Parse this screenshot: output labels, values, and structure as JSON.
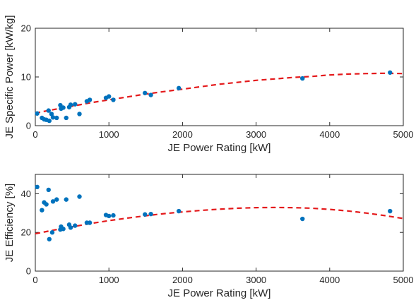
{
  "chart_data": [
    {
      "type": "scatter",
      "xlabel": "JE Power Rating [kW]",
      "ylabel": "JE Specific Power [kW/kg]",
      "xlim": [
        0,
        5000
      ],
      "ylim": [
        0,
        20
      ],
      "xticks": [
        "0",
        "1000",
        "2000",
        "3000",
        "4000",
        "5000"
      ],
      "yticks": [
        "0",
        "10",
        "20"
      ],
      "grid": false,
      "point_color": "#0072BD",
      "fit_color": "#E41A1C",
      "points": [
        [
          25,
          2.5
        ],
        [
          90,
          1.6
        ],
        [
          120,
          1.3
        ],
        [
          150,
          1.2
        ],
        [
          180,
          3.1
        ],
        [
          190,
          1.0
        ],
        [
          220,
          2.4
        ],
        [
          240,
          1.7
        ],
        [
          290,
          1.6
        ],
        [
          340,
          4.2
        ],
        [
          350,
          3.5
        ],
        [
          380,
          3.7
        ],
        [
          420,
          1.6
        ],
        [
          460,
          3.8
        ],
        [
          480,
          4.3
        ],
        [
          540,
          4.4
        ],
        [
          600,
          2.4
        ],
        [
          700,
          5.0
        ],
        [
          740,
          5.3
        ],
        [
          960,
          5.7
        ],
        [
          1000,
          6.0
        ],
        [
          1060,
          5.3
        ],
        [
          1490,
          6.7
        ],
        [
          1570,
          6.3
        ],
        [
          1950,
          7.7
        ],
        [
          3630,
          9.7
        ],
        [
          4820,
          10.9
        ]
      ],
      "fit": {
        "style": "dashed",
        "x": [
          0,
          250,
          500,
          750,
          1000,
          1250,
          1500,
          1750,
          2000,
          2250,
          2500,
          2750,
          3000,
          3250,
          3500,
          3750,
          4000,
          4250,
          4500,
          4750,
          5000
        ],
        "y": [
          2.6,
          3.3,
          4.0,
          4.7,
          5.3,
          5.9,
          6.5,
          7.0,
          7.5,
          8.0,
          8.5,
          8.9,
          9.3,
          9.6,
          9.9,
          10.1,
          10.4,
          10.6,
          10.7,
          10.75,
          10.7
        ]
      }
    },
    {
      "type": "scatter",
      "xlabel": "JE Power Rating [kW]",
      "ylabel": "JE Efficiency [%]",
      "xlim": [
        0,
        5000
      ],
      "ylim": [
        0,
        50
      ],
      "xticks": [
        "0",
        "1000",
        "2000",
        "3000",
        "4000",
        "5000"
      ],
      "yticks": [
        "0",
        "20",
        "40"
      ],
      "grid": false,
      "point_color": "#0072BD",
      "fit_color": "#E41A1C",
      "points": [
        [
          25,
          43.5
        ],
        [
          90,
          31.5
        ],
        [
          120,
          35.5
        ],
        [
          150,
          34.5
        ],
        [
          180,
          42.0
        ],
        [
          190,
          16.5
        ],
        [
          230,
          20.0
        ],
        [
          240,
          36.0
        ],
        [
          290,
          37.0
        ],
        [
          340,
          21.5
        ],
        [
          350,
          23.0
        ],
        [
          380,
          21.8
        ],
        [
          420,
          37.0
        ],
        [
          460,
          24.0
        ],
        [
          480,
          22.5
        ],
        [
          540,
          23.5
        ],
        [
          600,
          38.5
        ],
        [
          700,
          25.0
        ],
        [
          740,
          25.0
        ],
        [
          960,
          29.0
        ],
        [
          1000,
          28.5
        ],
        [
          1060,
          28.8
        ],
        [
          1490,
          29.3
        ],
        [
          1570,
          29.5
        ],
        [
          1950,
          31.0
        ],
        [
          3630,
          27.0
        ],
        [
          4820,
          31.0
        ]
      ],
      "fit": {
        "style": "dashed",
        "x": [
          0,
          250,
          500,
          750,
          1000,
          1250,
          1500,
          1750,
          2000,
          2250,
          2500,
          2750,
          3000,
          3250,
          3500,
          3750,
          4000,
          4250,
          4500,
          4750,
          5000
        ],
        "y": [
          19.3,
          21.2,
          22.9,
          24.6,
          26.1,
          27.4,
          28.6,
          29.7,
          30.6,
          31.4,
          32.0,
          32.5,
          32.8,
          32.9,
          32.8,
          32.5,
          31.9,
          31.1,
          30.0,
          28.7,
          27.2
        ]
      }
    }
  ]
}
